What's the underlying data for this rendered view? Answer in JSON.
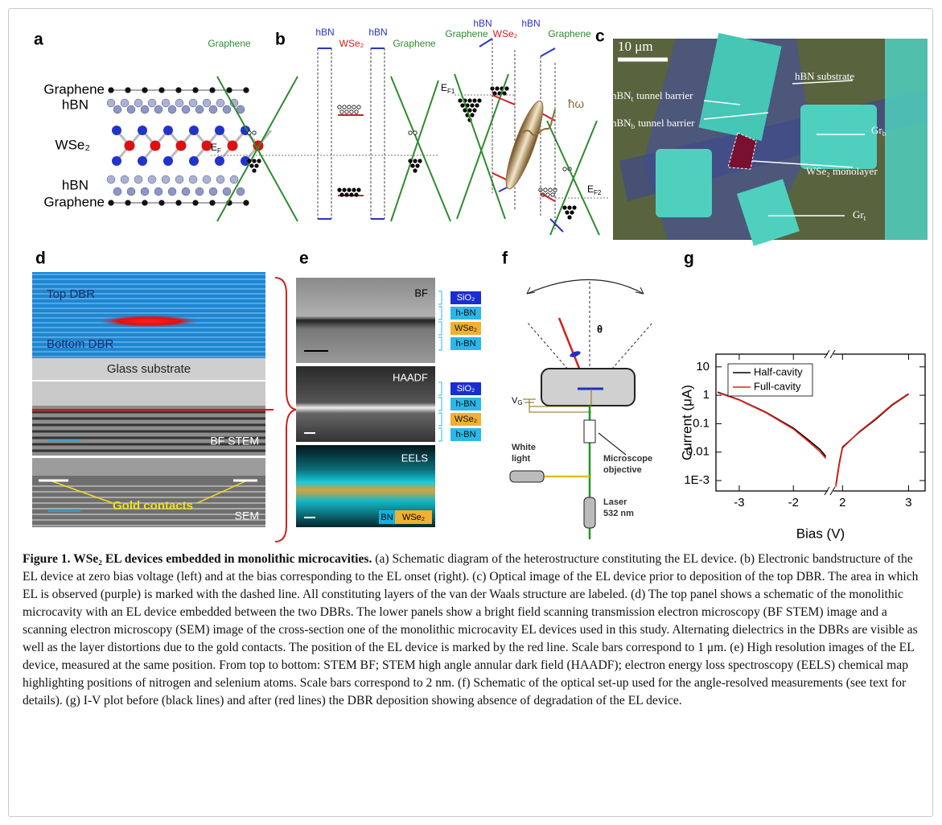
{
  "panels": {
    "a": {
      "label": "a",
      "layers": [
        "Graphene",
        "hBN",
        "WSe₂",
        "hBN",
        "Graphene"
      ]
    },
    "b": {
      "label": "b",
      "left_labels": [
        "hBN",
        "hBN",
        "Graphene",
        "WSe₂",
        "Graphene"
      ],
      "fermi_level": {
        "main": "E",
        "sub": "F"
      },
      "right_labels": [
        "hBN",
        "hBN",
        "Graphene",
        "WSe₂",
        "Graphene"
      ],
      "fermi_left": {
        "main": "E",
        "sub": "F1"
      },
      "photon": "ħω",
      "fermi_right": {
        "main": "E",
        "sub": "F2"
      }
    },
    "c": {
      "label": "c",
      "scale_bar": "10 μm",
      "hbn_substrate": "hBN substrate",
      "hbn_t": {
        "main": "hBN",
        "sub": "t",
        "rest": "tunnel barrier"
      },
      "hbn_b": {
        "main": "hBN",
        "sub": "b",
        "rest": "tunnel barrier"
      },
      "gr_b": {
        "main": "Gr",
        "sub": "b"
      },
      "wse2": "WSe₂ monolayer",
      "gr_t": {
        "main": "Gr",
        "sub": "t"
      }
    },
    "d": {
      "label": "d",
      "top_dbr": "Top DBR",
      "bottom_dbr": "Bottom DBR",
      "glass": "Glass substrate",
      "bf_stem": "BF STEM",
      "gold": "Gold contacts",
      "sem": "SEM"
    },
    "e": {
      "label": "e",
      "bf": "BF",
      "haadf": "HAADF",
      "eels": "EELS",
      "bf_layers": [
        "SiO₂",
        "h-BN",
        "WSe₂",
        "h-BN"
      ],
      "haadf_layers": [
        "SiO₂",
        "h-BN",
        "WSe₂",
        "h-BN"
      ],
      "eels_legend": [
        "BN",
        "WSe₂"
      ]
    },
    "f": {
      "label": "f",
      "angle": "θ",
      "gate": {
        "main": "V",
        "sub": "G"
      },
      "white_light": [
        "White",
        "light"
      ],
      "objective": [
        "Microscope",
        "objective"
      ],
      "laser": [
        "Laser",
        "532 nm"
      ]
    }
  },
  "chart_data": {
    "type": "line",
    "panel_label": "g",
    "xlabel": "Bias (V)",
    "ylabel": "Current (μA)",
    "x": [
      -3.4,
      -3,
      -2.5,
      -2,
      -1.7,
      -1.5,
      -1.4,
      null,
      1.9,
      1.95,
      2,
      2.25,
      2.5,
      2.75,
      3
    ],
    "series": [
      {
        "name": "Half-cavity",
        "color": "#000000",
        "values": [
          1.3,
          0.7,
          0.25,
          0.07,
          0.025,
          0.012,
          0.007,
          null,
          0.0007,
          0.004,
          0.015,
          0.05,
          0.14,
          0.45,
          1.1
        ]
      },
      {
        "name": "Full-cavity",
        "color": "#e0201b",
        "values": [
          1.25,
          0.68,
          0.24,
          0.065,
          0.022,
          0.01,
          0.006,
          null,
          0.0006,
          0.0035,
          0.014,
          0.052,
          0.15,
          0.47,
          1.15
        ]
      }
    ],
    "xlim": [
      [
        -3.43,
        -1.35
      ],
      [
        1.85,
        3.25
      ]
    ],
    "xticks": [
      -3,
      -2,
      2,
      3
    ],
    "axis_break": true,
    "ylim": [
      0.00043,
      28
    ],
    "yticks": [
      {
        "value": 0.001,
        "label": "1E-3"
      },
      0.01,
      0.1,
      1,
      10
    ],
    "yscale": "log",
    "legend": "upper left"
  },
  "caption": {
    "title": "Figure 1. WSe₂ EL devices embedded in monolithic microcavities.",
    "body": "(a) Schematic diagram of the heterostructure constituting the EL device. (b) Electronic bandstructure of the EL device at zero bias voltage (left) and at the bias corresponding to the EL onset (right). (c) Optical image of the EL device prior to deposition of the top DBR. The area in which EL is observed (purple) is marked with the dashed line. All constituting layers of the van der Waals structure are labeled. (d) The top panel shows a schematic of the monolithic microcavity with an EL device embedded between the two DBRs. The lower panels show a bright field scanning transmission electron microscopy (BF STEM) image and a scanning electron microscopy (SEM) image of the cross-section one of the monolithic microcavity EL devices used in this study. Alternating dielectrics in the DBRs are visible as well as the layer distortions due to the gold contacts. The position of the EL device is marked by the red line. Scale bars correspond to 1 μm. (e) High resolution images of the EL device, measured at the same position. From top to bottom: STEM BF; STEM high angle annular dark field (HAADF); electron energy loss spectroscopy (EELS) chemical map highlighting positions of nitrogen and selenium atoms. Scale bars correspond to 2 nm. (f) Schematic of the optical set-up used for the angle-resolved measurements (see text for details). (g) I-V plot before (black lines) and after (red lines) the DBR deposition showing absence of degradation of the EL device."
  }
}
